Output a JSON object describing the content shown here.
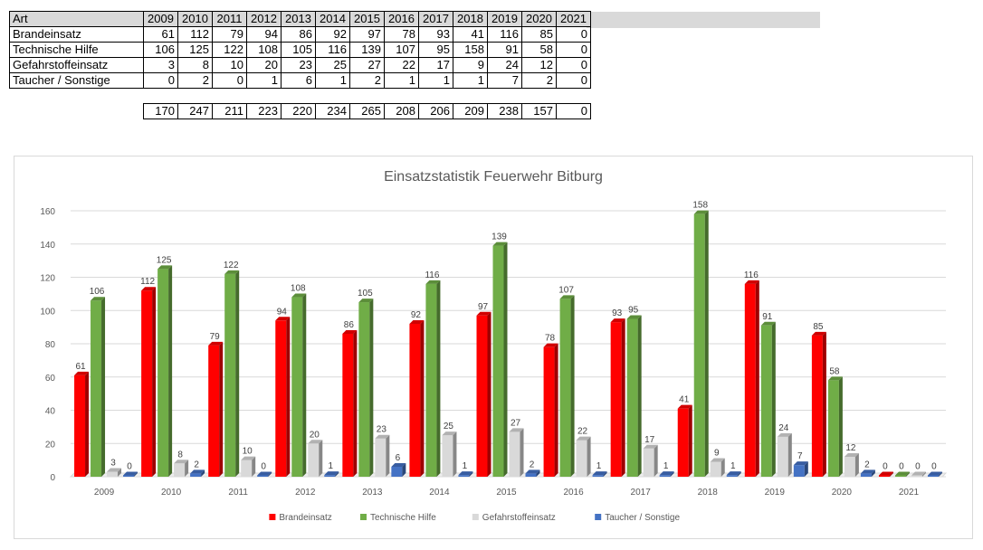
{
  "table": {
    "header_label": "Art",
    "years": [
      "2009",
      "2010",
      "2011",
      "2012",
      "2013",
      "2014",
      "2015",
      "2016",
      "2017",
      "2018",
      "2019",
      "2020",
      "2021"
    ],
    "rows": [
      {
        "name": "Brandeinsatz",
        "values": [
          "61",
          "112",
          "79",
          "94",
          "86",
          "92",
          "97",
          "78",
          "93",
          "41",
          "116",
          "85",
          "0"
        ]
      },
      {
        "name": "Technische Hilfe",
        "values": [
          "106",
          "125",
          "122",
          "108",
          "105",
          "116",
          "139",
          "107",
          "95",
          "158",
          "91",
          "58",
          "0"
        ]
      },
      {
        "name": "Gefahrstoffeinsatz",
        "values": [
          "3",
          "8",
          "10",
          "20",
          "23",
          "25",
          "27",
          "22",
          "17",
          "9",
          "24",
          "12",
          "0"
        ]
      },
      {
        "name": "Taucher / Sonstige",
        "values": [
          "0",
          "2",
          "0",
          "1",
          "6",
          "1",
          "2",
          "1",
          "1",
          "1",
          "7",
          "2",
          "0"
        ]
      }
    ],
    "totals": [
      "170",
      "247",
      "211",
      "223",
      "220",
      "234",
      "265",
      "208",
      "206",
      "209",
      "238",
      "157",
      "0"
    ]
  },
  "chart_data": {
    "type": "bar",
    "title": "Einsatzstatistik Feuerwehr Bitburg",
    "xlabel": "",
    "ylabel": "",
    "categories": [
      "2009",
      "2010",
      "2011",
      "2012",
      "2013",
      "2014",
      "2015",
      "2016",
      "2017",
      "2018",
      "2019",
      "2020",
      "2021"
    ],
    "ylim": [
      0,
      160
    ],
    "yticks": [
      0,
      20,
      40,
      60,
      80,
      100,
      120,
      140,
      160
    ],
    "grid": true,
    "legend_position": "bottom",
    "series": [
      {
        "name": "Brandeinsatz",
        "color": "#ff0000",
        "values": [
          61,
          112,
          79,
          94,
          86,
          92,
          97,
          78,
          93,
          41,
          116,
          85,
          0
        ]
      },
      {
        "name": "Technische Hilfe",
        "color": "#70ad47",
        "values": [
          106,
          125,
          122,
          108,
          105,
          116,
          139,
          107,
          95,
          158,
          91,
          58,
          0
        ]
      },
      {
        "name": "Gefahrstoffeinsatz",
        "color": "#d9d9d9",
        "values": [
          3,
          8,
          10,
          20,
          23,
          25,
          27,
          22,
          17,
          9,
          24,
          12,
          0
        ]
      },
      {
        "name": "Taucher / Sonstige",
        "color": "#4472c4",
        "values": [
          0,
          2,
          0,
          1,
          6,
          1,
          2,
          1,
          1,
          1,
          7,
          2,
          0
        ]
      }
    ]
  }
}
